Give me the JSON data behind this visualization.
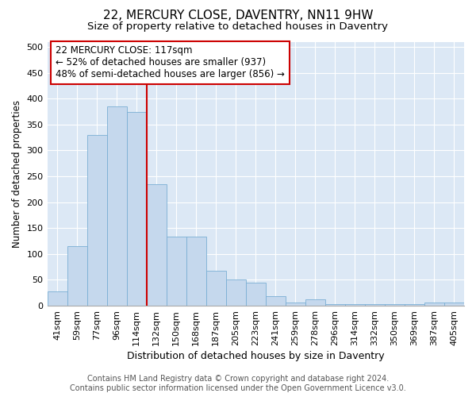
{
  "title": "22, MERCURY CLOSE, DAVENTRY, NN11 9HW",
  "subtitle": "Size of property relative to detached houses in Daventry",
  "xlabel": "Distribution of detached houses by size in Daventry",
  "ylabel": "Number of detached properties",
  "categories": [
    "41sqm",
    "59sqm",
    "77sqm",
    "96sqm",
    "114sqm",
    "132sqm",
    "150sqm",
    "168sqm",
    "187sqm",
    "205sqm",
    "223sqm",
    "241sqm",
    "259sqm",
    "278sqm",
    "296sqm",
    "314sqm",
    "332sqm",
    "350sqm",
    "369sqm",
    "387sqm",
    "405sqm"
  ],
  "values": [
    28,
    115,
    330,
    385,
    375,
    235,
    133,
    133,
    68,
    50,
    45,
    18,
    7,
    12,
    3,
    3,
    3,
    3,
    3,
    6,
    6
  ],
  "bar_color": "#c5d8ed",
  "bar_edgecolor": "#7aafd4",
  "vline_color": "#cc0000",
  "annotation_box_edgecolor": "#cc0000",
  "annotation_box_facecolor": "#ffffff",
  "ylim": [
    0,
    510
  ],
  "yticks": [
    0,
    50,
    100,
    150,
    200,
    250,
    300,
    350,
    400,
    450,
    500
  ],
  "bg_color": "#ffffff",
  "plot_bg_color": "#dce8f5",
  "grid_color": "#ffffff",
  "title_fontsize": 11,
  "subtitle_fontsize": 9.5,
  "xlabel_fontsize": 9,
  "ylabel_fontsize": 8.5,
  "tick_fontsize": 8,
  "footer_fontsize": 7,
  "annotation_fontsize": 8.5,
  "reference_line_label": "22 MERCURY CLOSE: 117sqm",
  "annotation_line1": "← 52% of detached houses are smaller (937)",
  "annotation_line2": "48% of semi-detached houses are larger (856) →",
  "footer_line1": "Contains HM Land Registry data © Crown copyright and database right 2024.",
  "footer_line2": "Contains public sector information licensed under the Open Government Licence v3.0."
}
